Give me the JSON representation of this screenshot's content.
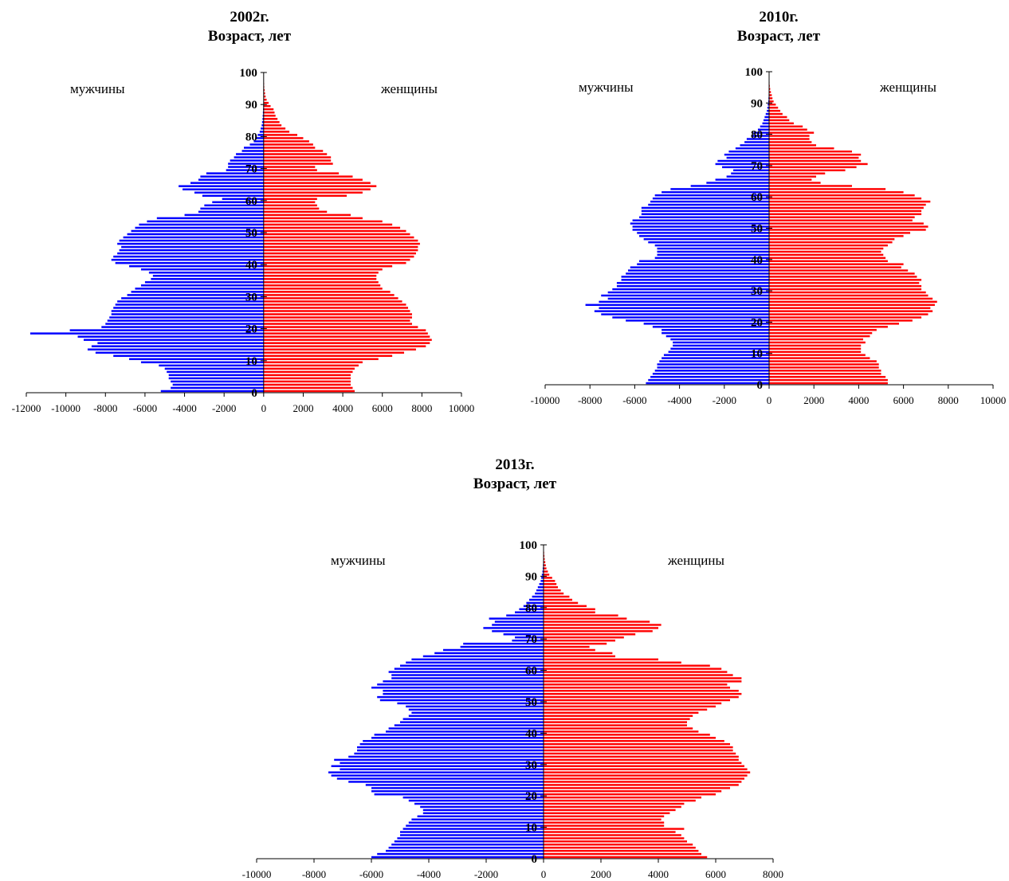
{
  "colors": {
    "male": "#0000ff",
    "female": "#ff0000",
    "axis": "#000000"
  },
  "chart_data": [
    {
      "type": "bar",
      "orientation": "horizontal",
      "layout": "population-pyramid",
      "title": "2002г.",
      "subtitle": "Возраст, лет",
      "male_label": "мужчины",
      "female_label": "женщины",
      "xlim": [
        -12000,
        10000
      ],
      "xticks": [
        "-12000",
        "-10000",
        "-8000",
        "-6000",
        "-4000",
        "-2000",
        "0",
        "2000",
        "4000",
        "6000",
        "8000",
        "10000"
      ],
      "ylim": [
        0,
        100
      ],
      "yticks": [
        "0",
        "10",
        "20",
        "30",
        "40",
        "50",
        "60",
        "70",
        "80",
        "90",
        "100"
      ],
      "age_start": 0,
      "series": [
        {
          "name": "мужчины",
          "values": [
            -5200,
            -4700,
            -4600,
            -4700,
            -4800,
            -4800,
            -4900,
            -5000,
            -5300,
            -6200,
            -6800,
            -7600,
            -8500,
            -8900,
            -8700,
            -8400,
            -9100,
            -9400,
            -11800,
            -9800,
            -8200,
            -8000,
            -7900,
            -7800,
            -7700,
            -7700,
            -7600,
            -7500,
            -7400,
            -7200,
            -6900,
            -6700,
            -6500,
            -6200,
            -6000,
            -5700,
            -5600,
            -5800,
            -6200,
            -6800,
            -7500,
            -7700,
            -7600,
            -7400,
            -7300,
            -7200,
            -7400,
            -7300,
            -7100,
            -6900,
            -6700,
            -6500,
            -6300,
            -5900,
            -5400,
            -4000,
            -3300,
            -3200,
            -3000,
            -2600,
            -2100,
            -3100,
            -3500,
            -4100,
            -4300,
            -3700,
            -3300,
            -3200,
            -2900,
            -1900,
            -1800,
            -1800,
            -1700,
            -1500,
            -1400,
            -1100,
            -1000,
            -700,
            -500,
            -400,
            -300,
            -200,
            -150,
            -100,
            -80,
            -60,
            -50,
            -40,
            -30,
            -20,
            -15,
            -10,
            -8,
            -6,
            -5,
            -4,
            -3,
            -2,
            -1,
            -1
          ]
        },
        {
          "name": "женщины",
          "values": [
            4600,
            4500,
            4400,
            4400,
            4400,
            4400,
            4500,
            4600,
            4800,
            5000,
            5800,
            6500,
            7100,
            7700,
            8200,
            8400,
            8500,
            8400,
            8300,
            8200,
            7800,
            7500,
            7400,
            7500,
            7500,
            7400,
            7300,
            7200,
            7000,
            6800,
            6600,
            6400,
            6000,
            5900,
            5800,
            5700,
            5700,
            5800,
            6000,
            6500,
            7200,
            7400,
            7600,
            7700,
            7800,
            7800,
            7900,
            7800,
            7600,
            7400,
            7200,
            6900,
            6500,
            6000,
            5000,
            4400,
            3200,
            2800,
            2700,
            2600,
            2700,
            4200,
            5000,
            5400,
            5700,
            5400,
            5000,
            4500,
            3800,
            2700,
            2600,
            3500,
            3400,
            3400,
            3200,
            3000,
            2600,
            2500,
            2300,
            2000,
            1700,
            1300,
            1100,
            900,
            800,
            700,
            600,
            550,
            500,
            350,
            250,
            150,
            100,
            70,
            50,
            30,
            20,
            10,
            5,
            3
          ]
        }
      ]
    },
    {
      "type": "bar",
      "orientation": "horizontal",
      "layout": "population-pyramid",
      "title": "2010г.",
      "subtitle": "Возраст, лет",
      "male_label": "мужчины",
      "female_label": "женщины",
      "xlim": [
        -10000,
        10000
      ],
      "xticks": [
        "-10000",
        "-8000",
        "-6000",
        "-4000",
        "-2000",
        "0",
        "2000",
        "4000",
        "6000",
        "8000",
        "10000"
      ],
      "ylim": [
        0,
        100
      ],
      "yticks": [
        "0",
        "10",
        "20",
        "30",
        "40",
        "50",
        "60",
        "70",
        "80",
        "90",
        "100"
      ],
      "age_start": 0,
      "series": [
        {
          "name": "мужчины",
          "values": [
            -5500,
            -5400,
            -5300,
            -5200,
            -5100,
            -5000,
            -5000,
            -4900,
            -4800,
            -4700,
            -4500,
            -4400,
            -4300,
            -4300,
            -4400,
            -4600,
            -4800,
            -4800,
            -5200,
            -5600,
            -6400,
            -7000,
            -7500,
            -7800,
            -7600,
            -8200,
            -7600,
            -7200,
            -7500,
            -7200,
            -7000,
            -6800,
            -6800,
            -6600,
            -6600,
            -6400,
            -6300,
            -6200,
            -5900,
            -5800,
            -5100,
            -5000,
            -5000,
            -5000,
            -5100,
            -5400,
            -5600,
            -5800,
            -5900,
            -6100,
            -6100,
            -6200,
            -6100,
            -5800,
            -5700,
            -5700,
            -5700,
            -5400,
            -5300,
            -5200,
            -5100,
            -4800,
            -4400,
            -3500,
            -2800,
            -2400,
            -1900,
            -1700,
            -1600,
            -2100,
            -2400,
            -2300,
            -1900,
            -2000,
            -1800,
            -1500,
            -1300,
            -1100,
            -1000,
            -800,
            -700,
            -500,
            -400,
            -300,
            -250,
            -200,
            -150,
            -100,
            -80,
            -60,
            -40,
            -30,
            -20,
            -15,
            -10,
            -8,
            -5,
            -3,
            -2,
            -1
          ]
        },
        {
          "name": "женщины",
          "values": [
            5300,
            5300,
            5200,
            5000,
            5000,
            4900,
            4900,
            4800,
            4500,
            4300,
            4100,
            4100,
            4100,
            4300,
            4200,
            4500,
            4600,
            4800,
            5300,
            5800,
            6400,
            6800,
            7100,
            7300,
            7200,
            7400,
            7500,
            7300,
            7100,
            7000,
            6800,
            6800,
            6700,
            6800,
            6600,
            6500,
            6200,
            5900,
            6000,
            5300,
            5200,
            5100,
            5000,
            5100,
            5300,
            5500,
            5600,
            6000,
            6300,
            7000,
            7100,
            6900,
            6400,
            6500,
            6800,
            6800,
            6900,
            7000,
            7200,
            6800,
            6500,
            6000,
            5200,
            3700,
            2300,
            1900,
            2100,
            2500,
            3400,
            3900,
            4400,
            4100,
            4000,
            4100,
            3700,
            2900,
            2100,
            1900,
            1800,
            1800,
            2000,
            1700,
            1500,
            1100,
            900,
            800,
            600,
            500,
            400,
            300,
            200,
            150,
            120,
            80,
            50,
            30,
            20,
            10,
            5,
            3
          ]
        }
      ]
    },
    {
      "type": "bar",
      "orientation": "horizontal",
      "layout": "population-pyramid",
      "title": "2013г.",
      "subtitle": "Возраст, лет",
      "male_label": "мужчины",
      "female_label": "женщины",
      "xlim": [
        -10000,
        8000
      ],
      "xticks": [
        "-10000",
        "-8000",
        "-6000",
        "-4000",
        "-2000",
        "0",
        "2000",
        "4000",
        "6000",
        "8000"
      ],
      "ylim": [
        0,
        100
      ],
      "yticks": [
        "0",
        "10",
        "20",
        "30",
        "40",
        "50",
        "60",
        "70",
        "80",
        "90",
        "100"
      ],
      "age_start": 0,
      "series": [
        {
          "name": "мужчины",
          "values": [
            -6000,
            -5800,
            -5500,
            -5400,
            -5300,
            -5200,
            -5100,
            -5000,
            -5000,
            -4900,
            -4800,
            -4700,
            -4600,
            -4400,
            -4200,
            -4200,
            -4300,
            -4500,
            -4700,
            -4900,
            -5900,
            -6000,
            -6000,
            -6200,
            -6800,
            -7200,
            -7400,
            -7500,
            -7100,
            -7400,
            -7100,
            -7300,
            -6800,
            -6600,
            -6500,
            -6500,
            -6400,
            -6300,
            -6000,
            -5900,
            -5500,
            -5400,
            -5200,
            -5000,
            -4900,
            -4700,
            -4600,
            -4700,
            -4800,
            -5100,
            -5700,
            -5800,
            -5600,
            -5600,
            -6000,
            -5800,
            -5600,
            -5300,
            -5300,
            -5400,
            -5200,
            -5000,
            -4800,
            -4600,
            -4200,
            -3800,
            -3500,
            -2900,
            -2800,
            -1100,
            -1000,
            -1400,
            -1800,
            -2100,
            -1800,
            -1700,
            -1900,
            -1300,
            -1000,
            -850,
            -700,
            -600,
            -500,
            -400,
            -300,
            -250,
            -200,
            -150,
            -100,
            -80,
            -60,
            -40,
            -30,
            -20,
            -15,
            -10,
            -8,
            -5,
            -3,
            -2
          ]
        },
        {
          "name": "женщины",
          "values": [
            5700,
            5500,
            5400,
            5300,
            5200,
            5000,
            4900,
            4800,
            4600,
            4900,
            4200,
            4200,
            4100,
            4200,
            4400,
            4600,
            4800,
            4900,
            5300,
            5500,
            6000,
            6200,
            6500,
            6800,
            6900,
            7000,
            7100,
            7200,
            7100,
            7000,
            6900,
            6800,
            6800,
            6700,
            6600,
            6600,
            6500,
            6300,
            6000,
            5800,
            5400,
            5200,
            5000,
            5000,
            5100,
            5200,
            5400,
            5700,
            6000,
            6200,
            6500,
            6800,
            6900,
            6800,
            6500,
            6400,
            6900,
            6900,
            6600,
            6400,
            6200,
            5800,
            4800,
            4000,
            2500,
            2400,
            1800,
            1600,
            2200,
            2500,
            2800,
            3200,
            3800,
            4000,
            4100,
            3700,
            2900,
            2600,
            1800,
            1800,
            1500,
            1200,
            1000,
            900,
            700,
            600,
            500,
            450,
            400,
            300,
            200,
            150,
            100,
            80,
            60,
            40,
            30,
            20,
            10,
            5
          ]
        }
      ]
    }
  ]
}
